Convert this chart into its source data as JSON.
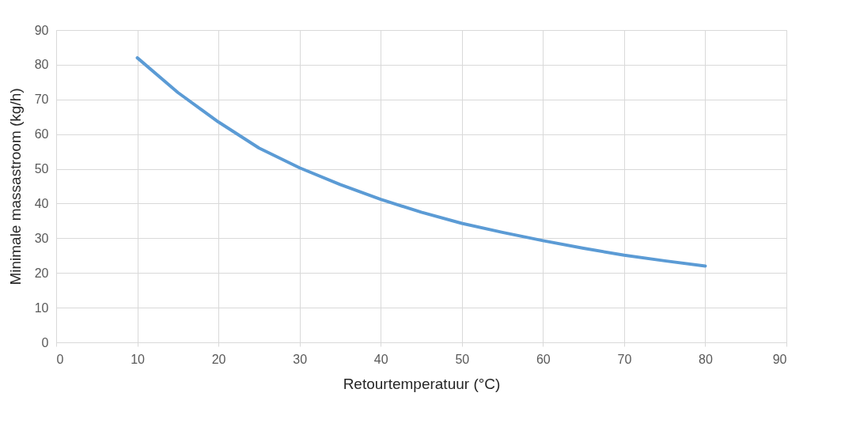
{
  "chart_data": {
    "type": "line",
    "xlabel": "Retourtemperatuur (°C)",
    "ylabel": "Minimale massastroom (kg/h)",
    "x": [
      10,
      15,
      20,
      25,
      30,
      35,
      40,
      45,
      50,
      55,
      60,
      65,
      70,
      75,
      80
    ],
    "series": [
      {
        "color": "#5b9bd5",
        "values": [
          82,
          72,
          63.5,
          56,
          50.3,
          45.5,
          41.2,
          37.5,
          34.3,
          31.7,
          29.3,
          27.1,
          25.1,
          23.5,
          22
        ]
      }
    ],
    "xlim": [
      0,
      90
    ],
    "xticks": [
      0,
      10,
      20,
      30,
      40,
      50,
      60,
      70,
      80,
      90
    ],
    "ylim": [
      0,
      90
    ],
    "yticks": [
      0,
      10,
      20,
      30,
      40,
      50,
      60,
      70,
      80,
      90
    ],
    "grid": true,
    "marker": "none",
    "line_style": "solid"
  }
}
